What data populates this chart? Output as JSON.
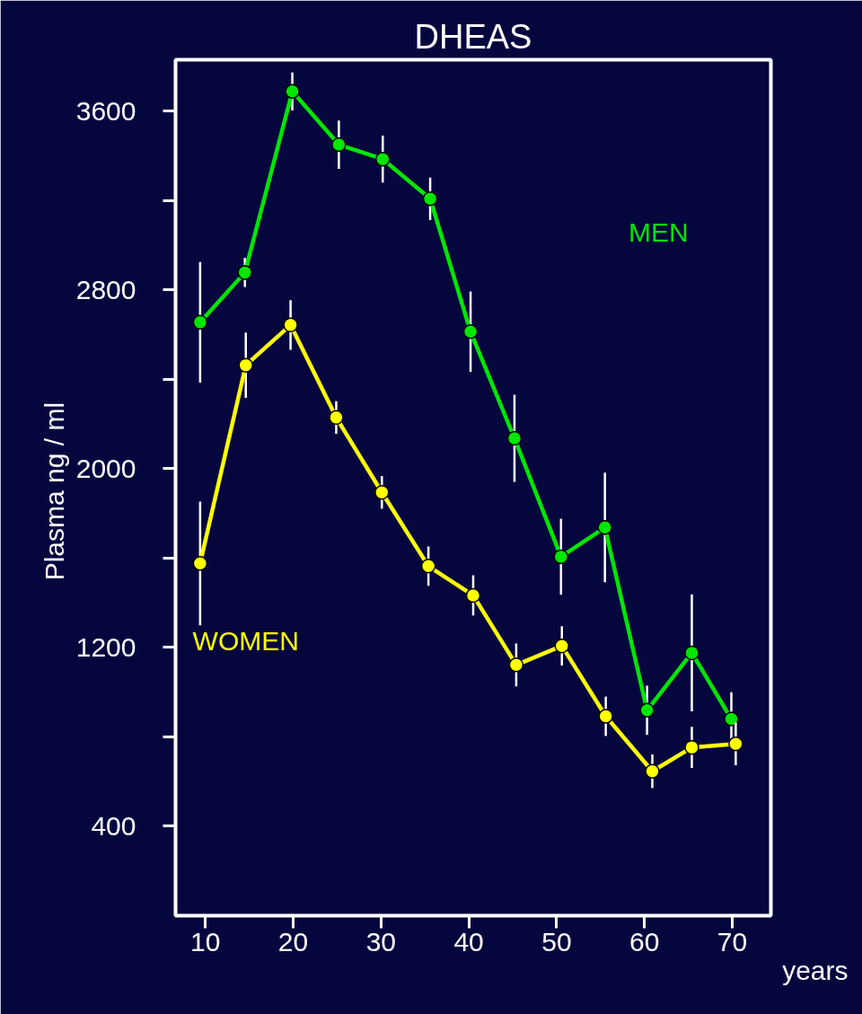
{
  "chart_data": {
    "type": "line",
    "title": "DHEAS",
    "xlabel": "years",
    "ylabel": "Plasma  ng / ml",
    "xlim": [
      6.6,
      74.4
    ],
    "xticks": [
      10,
      20,
      30,
      40,
      50,
      60,
      70
    ],
    "ylim": [
      0,
      3830
    ],
    "yticks": [
      400,
      {
        "value": 800,
        "label": null
      },
      1200,
      {
        "value": 1600,
        "label": null
      },
      2000,
      {
        "value": 2400,
        "label": null
      },
      2800,
      {
        "value": 3200,
        "label": null
      },
      3600
    ],
    "grid": false,
    "legend": false,
    "marker": "circle",
    "line_style": "solid",
    "series": [
      {
        "name": "MEN",
        "color": "#00e600",
        "x": [
          9.4,
          14.5,
          19.9,
          25.2,
          30.2,
          35.6,
          40.2,
          45.2,
          50.5,
          55.5,
          60.3,
          65.4,
          69.9
        ],
        "values": [
          2655,
          2878,
          3688,
          3450,
          3385,
          3208,
          2613,
          2136,
          1606,
          1737,
          919,
          1176,
          880
        ],
        "errors": [
          270,
          65,
          85,
          108,
          105,
          95,
          180,
          195,
          170,
          245,
          110,
          262,
          120
        ]
      },
      {
        "name": "WOMEN",
        "color": "#ffff00",
        "x": [
          9.4,
          14.6,
          19.7,
          24.9,
          30.1,
          35.4,
          40.5,
          45.4,
          50.6,
          55.6,
          60.9,
          65.4,
          70.4
        ],
        "values": [
          1576,
          2463,
          2643,
          2229,
          1894,
          1564,
          1433,
          1122,
          1207,
          892,
          646,
          753,
          769
        ],
        "errors": [
          277,
          146,
          111,
          73,
          73,
          88,
          90,
          96,
          88,
          88,
          75,
          92,
          96
        ]
      }
    ]
  }
}
